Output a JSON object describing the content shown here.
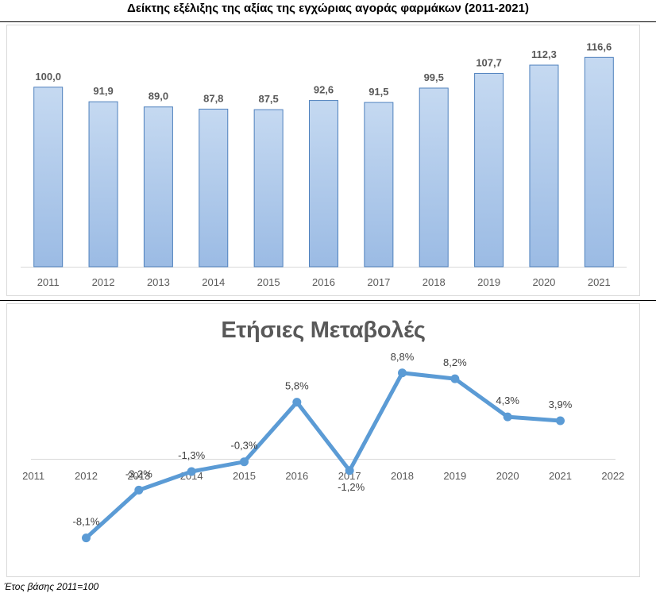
{
  "page": {
    "title": "Δείκτης εξέλιξης της αξίας της εγχώριας αγοράς φαρμάκων (2011-2021)",
    "footnote": "Έτος βάσης 2011=100"
  },
  "chart_data": [
    {
      "type": "bar",
      "title": "",
      "categories": [
        "2011",
        "2012",
        "2013",
        "2014",
        "2015",
        "2016",
        "2017",
        "2018",
        "2019",
        "2020",
        "2021"
      ],
      "values": [
        100.0,
        91.9,
        89.0,
        87.8,
        87.5,
        92.6,
        91.5,
        99.5,
        107.7,
        112.3,
        116.6
      ],
      "value_labels": [
        "100,0",
        "91,9",
        "89,0",
        "87,8",
        "87,5",
        "92,6",
        "91,5",
        "99,5",
        "107,7",
        "112,3",
        "116,6"
      ],
      "ylim": [
        0,
        130
      ],
      "grid": false,
      "colors": {
        "bar_fill_top": "#c5d9f1",
        "bar_fill_bottom": "#9bbbe4",
        "bar_stroke": "#4f81bd"
      }
    },
    {
      "type": "line",
      "title": "Ετήσιες Μεταβολές",
      "categories": [
        "2011",
        "2012",
        "2013",
        "2014",
        "2015",
        "2016",
        "2017",
        "2018",
        "2019",
        "2020",
        "2021",
        "2022"
      ],
      "x": [
        "2012",
        "2013",
        "2014",
        "2015",
        "2016",
        "2017",
        "2018",
        "2019",
        "2020",
        "2021"
      ],
      "values": [
        -8.1,
        -3.2,
        -1.3,
        -0.3,
        5.8,
        -1.2,
        8.8,
        8.2,
        4.3,
        3.9
      ],
      "value_labels": [
        "-8,1%",
        "-3,2%",
        "-1,3%",
        "-0,3%",
        "5,8%",
        "-1,2%",
        "8,8%",
        "8,2%",
        "4,3%",
        "3,9%"
      ],
      "ylim": [
        -9.5,
        10
      ],
      "grid": false,
      "colors": {
        "line": "#5b9bd5"
      }
    }
  ]
}
